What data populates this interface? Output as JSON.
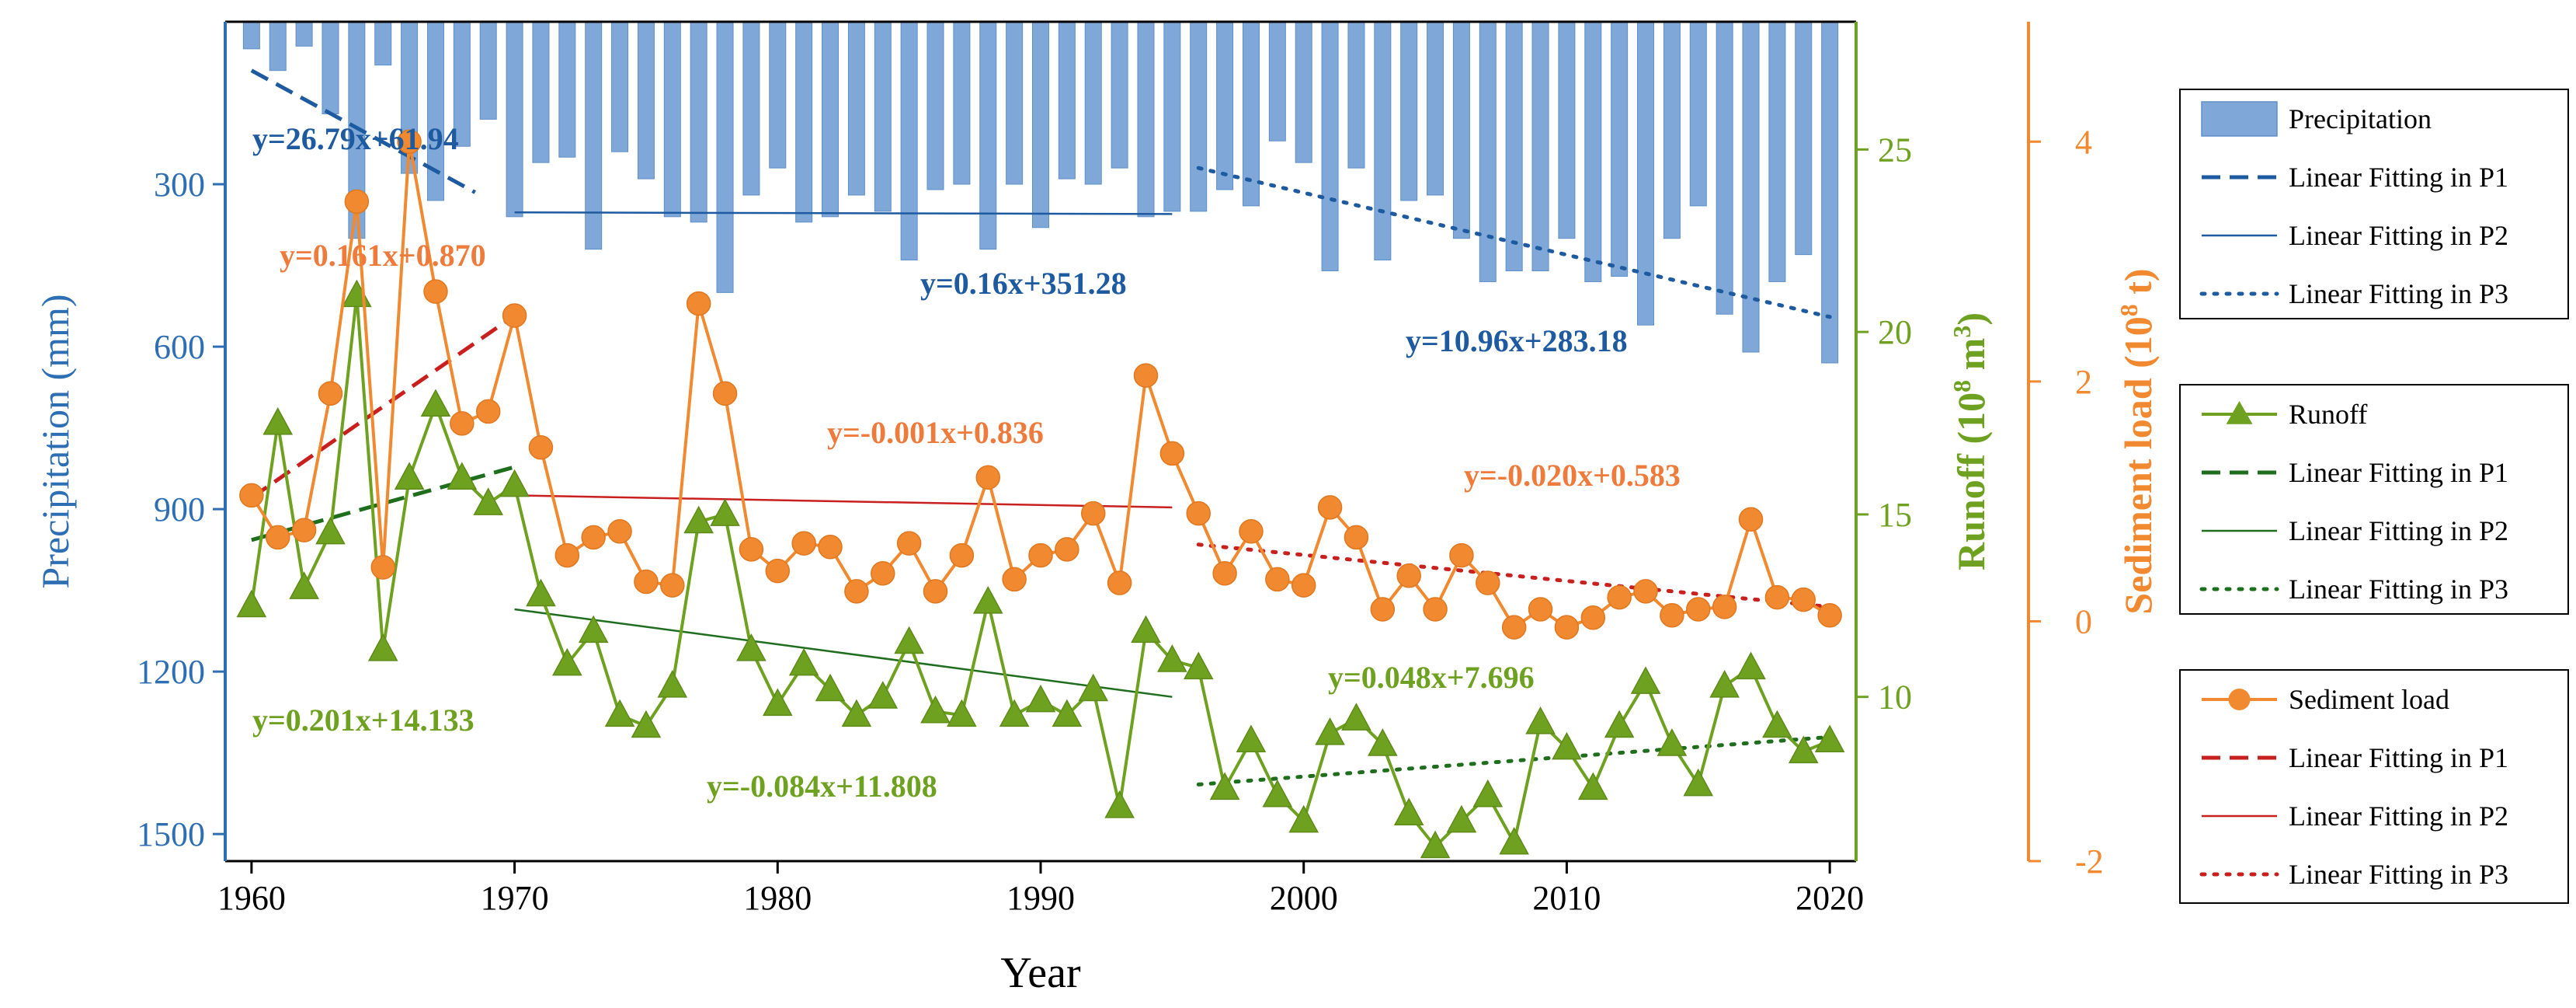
{
  "chart_data": {
    "type": "bar+line",
    "x_axis": {
      "label": "Year",
      "range": [
        1959,
        2021
      ],
      "ticks": [
        1960,
        1970,
        1980,
        1990,
        2000,
        2010,
        2020
      ],
      "tick_labels": [
        "1960",
        "1970",
        "1980",
        "1990",
        "2000",
        "2010",
        "2020"
      ]
    },
    "axes": {
      "precipitation": {
        "label": "Precipitation (mm)",
        "reversed": true,
        "range": [
          0,
          1550
        ],
        "ticks": [
          300,
          600,
          900,
          1200,
          1500
        ],
        "tick_labels": [
          "300",
          "600",
          "900",
          "1200",
          "1500"
        ],
        "color": "#2E6FB4"
      },
      "runoff": {
        "label_main": "Runoff (10",
        "label_sup": "8",
        "label_tail": " m",
        "label_sup2": "3",
        "label_end": ")",
        "range": [
          5.5,
          28.5
        ],
        "ticks": [
          10,
          15,
          20,
          25
        ],
        "tick_labels": [
          "10",
          "15",
          "20",
          "25"
        ],
        "color": "#6FA120"
      },
      "sediment": {
        "label_main": "Sediment load (10",
        "label_sup": "8",
        "label_end": " t)",
        "range": [
          -2,
          5
        ],
        "ticks": [
          -2,
          0,
          2,
          4
        ],
        "tick_labels": [
          "-2",
          "0",
          "2",
          "4"
        ],
        "color": "#F0892F"
      }
    },
    "years": [
      1960,
      1961,
      1962,
      1963,
      1964,
      1965,
      1966,
      1967,
      1968,
      1969,
      1970,
      1971,
      1972,
      1973,
      1974,
      1975,
      1976,
      1977,
      1978,
      1979,
      1980,
      1981,
      1982,
      1983,
      1984,
      1985,
      1986,
      1987,
      1988,
      1989,
      1990,
      1991,
      1992,
      1993,
      1994,
      1995,
      1996,
      1997,
      1998,
      1999,
      2000,
      2001,
      2002,
      2003,
      2004,
      2005,
      2006,
      2007,
      2008,
      2009,
      2010,
      2011,
      2012,
      2013,
      2014,
      2015,
      2016,
      2017,
      2018,
      2019,
      2020
    ],
    "series": [
      {
        "name": "Precipitation",
        "type": "bar",
        "axis": "precipitation",
        "color": "#7FA8D8",
        "values": [
          50,
          90,
          45,
          170,
          400,
          80,
          280,
          330,
          230,
          180,
          360,
          260,
          250,
          420,
          240,
          290,
          360,
          370,
          500,
          320,
          270,
          370,
          360,
          320,
          350,
          440,
          310,
          300,
          420,
          300,
          380,
          290,
          300,
          270,
          360,
          350,
          350,
          310,
          340,
          220,
          260,
          460,
          270,
          440,
          330,
          320,
          400,
          480,
          460,
          460,
          400,
          480,
          470,
          560,
          400,
          340,
          540,
          610,
          480,
          430,
          630
        ]
      },
      {
        "name": "Runoff",
        "type": "line",
        "axis": "runoff",
        "color": "#6FA120",
        "values": [
          12.5,
          17.5,
          13.0,
          14.5,
          21.0,
          11.3,
          16.0,
          18.0,
          16.0,
          15.3,
          15.8,
          12.8,
          10.9,
          11.8,
          9.5,
          9.2,
          10.3,
          14.8,
          15.0,
          11.3,
          9.8,
          10.9,
          10.2,
          9.5,
          10.0,
          11.5,
          9.6,
          9.5,
          12.6,
          9.5,
          9.9,
          9.5,
          10.2,
          7.0,
          11.8,
          11.0,
          10.8,
          7.5,
          8.8,
          7.3,
          6.6,
          9.0,
          9.4,
          8.7,
          6.8,
          5.9,
          6.6,
          7.3,
          6.0,
          9.3,
          8.6,
          7.5,
          9.2,
          10.4,
          8.7,
          7.6,
          10.3,
          10.8,
          9.2,
          8.5,
          8.8
        ]
      },
      {
        "name": "Sediment load",
        "type": "line",
        "axis": "sediment",
        "color": "#F0892F",
        "values": [
          1.05,
          0.7,
          0.76,
          1.9,
          3.5,
          0.45,
          4.0,
          2.75,
          1.65,
          1.75,
          2.55,
          1.45,
          0.55,
          0.7,
          0.75,
          0.33,
          0.3,
          2.65,
          1.9,
          0.6,
          0.42,
          0.65,
          0.62,
          0.25,
          0.4,
          0.65,
          0.25,
          0.55,
          1.2,
          0.35,
          0.55,
          0.6,
          0.9,
          0.32,
          2.05,
          1.4,
          0.9,
          0.4,
          0.75,
          0.35,
          0.3,
          0.95,
          0.7,
          0.1,
          0.38,
          0.1,
          0.55,
          0.32,
          -0.05,
          0.1,
          -0.05,
          0.03,
          0.2,
          0.25,
          0.05,
          0.1,
          0.12,
          0.85,
          0.2,
          0.18,
          0.05
        ]
      }
    ],
    "fits": [
      {
        "series": "Precipitation",
        "period": "P1",
        "style": "dashed",
        "x": [
          1960,
          1968.5
        ],
        "y": [
          90,
          315
        ],
        "equation": "y=26.79x+61.94",
        "color": "#1E5AA0"
      },
      {
        "series": "Precipitation",
        "period": "P2",
        "style": "solid",
        "x": [
          1970,
          1995
        ],
        "y": [
          352,
          355
        ],
        "equation": "y=0.16x+351.28",
        "color": "#1E5AA0"
      },
      {
        "series": "Precipitation",
        "period": "P3",
        "style": "dotted",
        "x": [
          1996,
          2020
        ],
        "y": [
          270,
          545
        ],
        "equation": "y=10.96x+283.18",
        "color": "#1E5AA0"
      },
      {
        "series": "Runoff",
        "period": "P1",
        "style": "dashed",
        "x": [
          1960,
          1970
        ],
        "y": [
          14.3,
          16.3
        ],
        "equation": "y=0.201x+14.133",
        "color": "#1E6E1E"
      },
      {
        "series": "Runoff",
        "period": "P2",
        "style": "solid",
        "x": [
          1970,
          1995
        ],
        "y": [
          12.4,
          10.0
        ],
        "equation": "y=-0.084x+11.808",
        "color": "#1E6E1E"
      },
      {
        "series": "Runoff",
        "period": "P3",
        "style": "dotted",
        "x": [
          1996,
          2020
        ],
        "y": [
          7.6,
          8.9
        ],
        "equation": "y=0.048x+7.696",
        "color": "#1E6E1E"
      },
      {
        "series": "Sediment load",
        "period": "P1",
        "style": "dashed",
        "x": [
          1960,
          1970
        ],
        "y": [
          1.03,
          2.55
        ],
        "equation": "y=0.161x+0.870",
        "color": "#C8201E"
      },
      {
        "series": "Sediment load",
        "period": "P2",
        "style": "solid",
        "x": [
          1970,
          1995
        ],
        "y": [
          1.05,
          0.95
        ],
        "equation": "y=-0.001x+0.836",
        "color": "#C8201E"
      },
      {
        "series": "Sediment load",
        "period": "P3",
        "style": "dotted",
        "x": [
          1996,
          2020
        ],
        "y": [
          0.64,
          0.12
        ],
        "equation": "y=-0.020x+0.583",
        "color": "#C8201E"
      }
    ],
    "legend": {
      "placement": "right",
      "groups": [
        [
          "Precipitation",
          "Linear Fitting in P1",
          "Linear Fitting in P2",
          "Linear Fitting in P3"
        ],
        [
          "Runoff",
          "Linear Fitting in P1",
          "Linear Fitting in P2",
          "Linear Fitting in P3"
        ],
        [
          "Sediment load",
          "Linear Fitting in P1",
          "Linear Fitting in P2",
          "Linear Fitting in P3"
        ]
      ]
    },
    "colors": {
      "precip_axis": "#2E6FB4",
      "precip_fill": "#7FA8D8",
      "precip_fit": "#1E5AA0",
      "runoff": "#6FA120",
      "runoff_fit": "#1E6E1E",
      "sediment": "#F0892F",
      "sediment_fit": "#C8201E",
      "precip_eq": "#1E5AA0",
      "runoff_eq": "#6FA120",
      "sediment_eq": "#EE7B3B"
    }
  }
}
